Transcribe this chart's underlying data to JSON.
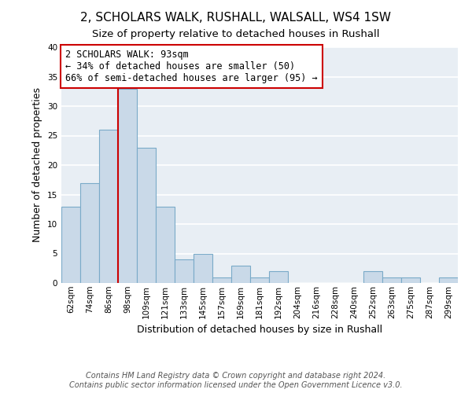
{
  "title": "2, SCHOLARS WALK, RUSHALL, WALSALL, WS4 1SW",
  "subtitle": "Size of property relative to detached houses in Rushall",
  "xlabel": "Distribution of detached houses by size in Rushall",
  "ylabel": "Number of detached properties",
  "bin_labels": [
    "62sqm",
    "74sqm",
    "86sqm",
    "98sqm",
    "109sqm",
    "121sqm",
    "133sqm",
    "145sqm",
    "157sqm",
    "169sqm",
    "181sqm",
    "192sqm",
    "204sqm",
    "216sqm",
    "228sqm",
    "240sqm",
    "252sqm",
    "263sqm",
    "275sqm",
    "287sqm",
    "299sqm"
  ],
  "bar_heights": [
    13,
    17,
    26,
    33,
    23,
    13,
    4,
    5,
    1,
    3,
    1,
    2,
    0,
    0,
    0,
    0,
    2,
    1,
    1,
    0,
    1
  ],
  "bar_color": "#c9d9e8",
  "bar_edge_color": "#7aaac8",
  "ylim": [
    0,
    40
  ],
  "yticks": [
    0,
    5,
    10,
    15,
    20,
    25,
    30,
    35,
    40
  ],
  "annotation_title": "2 SCHOLARS WALK: 93sqm",
  "annotation_line1": "← 34% of detached houses are smaller (50)",
  "annotation_line2": "66% of semi-detached houses are larger (95) →",
  "annotation_box_color": "#cc0000",
  "vertical_line_color": "#cc0000",
  "footer_line1": "Contains HM Land Registry data © Crown copyright and database right 2024.",
  "footer_line2": "Contains public sector information licensed under the Open Government Licence v3.0.",
  "background_color": "#e8eef4",
  "grid_color": "#ffffff",
  "title_fontsize": 11,
  "subtitle_fontsize": 9.5,
  "axis_label_fontsize": 9,
  "tick_fontsize": 7.5,
  "annotation_fontsize": 8.5,
  "footer_fontsize": 7
}
